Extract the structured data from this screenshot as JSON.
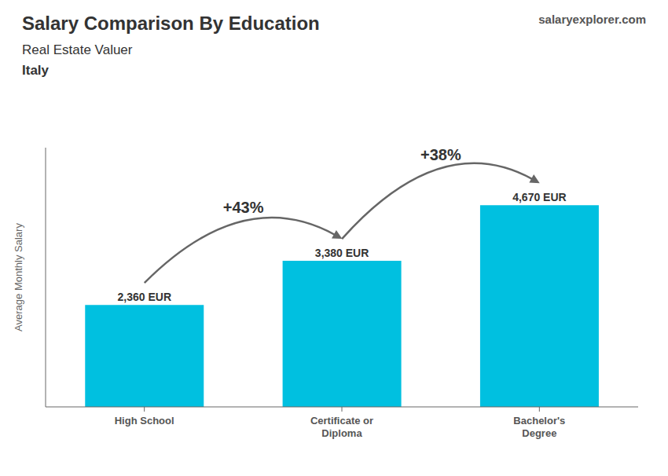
{
  "chart_data": {
    "type": "bar",
    "title": "Salary Comparison By Education",
    "subtitle": "Real Estate Valuer",
    "ylabel": "Average Monthly Salary",
    "categories": [
      "High School",
      "Certificate or\nDiploma",
      "Bachelor's\nDegree"
    ],
    "values": [
      2360,
      3380,
      4670
    ],
    "value_labels": [
      "2,360 EUR",
      "3,380 EUR",
      "4,670 EUR"
    ],
    "data_labels": true,
    "color": "#00c0e0",
    "ylim": [
      0,
      6000
    ],
    "tick_labels": "x",
    "grid": false,
    "annotations": [
      {
        "text": "Italy"
      },
      {
        "text": "salaryexplorer.com"
      },
      {
        "text": "+43%",
        "from": 0,
        "to": 1
      },
      {
        "text": "+38%",
        "from": 1,
        "to": 2
      }
    ]
  }
}
